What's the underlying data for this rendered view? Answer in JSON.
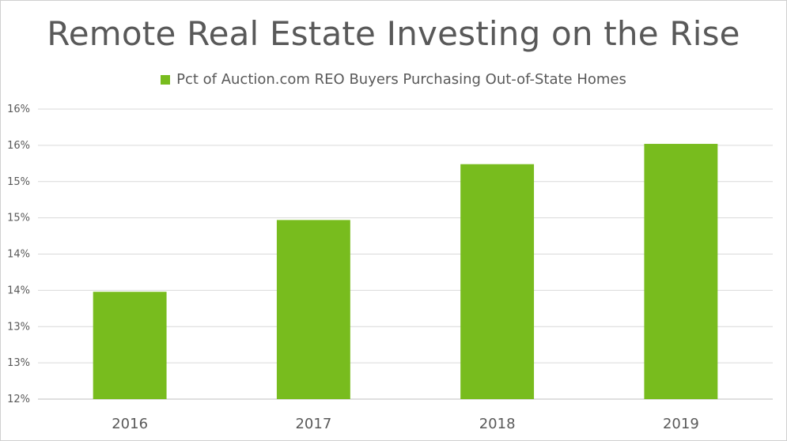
{
  "chart_data": {
    "type": "bar",
    "title": "Remote Real Estate Investing on the Rise",
    "xlabel": "",
    "ylabel": "",
    "categories": [
      "2016",
      "2017",
      "2018",
      "2019"
    ],
    "series": [
      {
        "name": "Pct of Auction.com REO Buyers Purchasing Out-of-State Homes",
        "values": [
          13.48,
          14.47,
          15.24,
          15.52
        ],
        "color": "#78bc1e"
      }
    ],
    "ylim": [
      12,
      16
    ],
    "yticks": [
      12,
      12.5,
      13,
      13.5,
      14,
      14.5,
      15,
      15.5,
      16
    ],
    "ytick_labels": [
      "12%",
      "13%",
      "13%",
      "14%",
      "14%",
      "15%",
      "15%",
      "16%",
      "16%"
    ],
    "grid": true,
    "legend_position": "top"
  }
}
